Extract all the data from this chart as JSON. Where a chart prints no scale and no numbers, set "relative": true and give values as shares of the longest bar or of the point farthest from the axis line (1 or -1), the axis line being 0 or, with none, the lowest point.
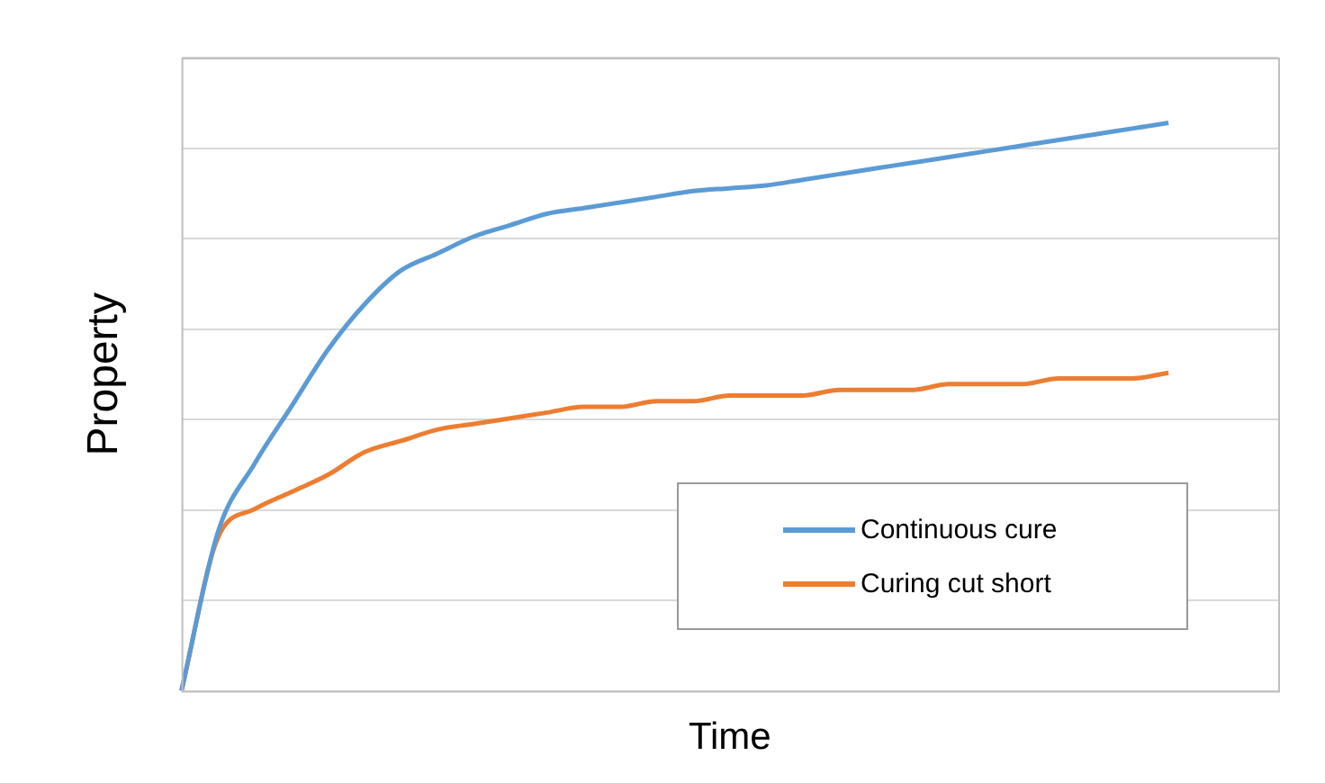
{
  "chart_data": {
    "type": "line",
    "xlabel": "Time",
    "ylabel": "Property",
    "relative": true,
    "grid": "y",
    "legend": "bottom right",
    "tick_labels": false,
    "marker": "none",
    "line_style": "solid",
    "categories": [
      null,
      null,
      null,
      null,
      null,
      null,
      null,
      null,
      null,
      null,
      null,
      null,
      null,
      null,
      null,
      null,
      null,
      null,
      null,
      null,
      null,
      null,
      null,
      null,
      null,
      null,
      null,
      null,
      null,
      null,
      null
    ],
    "series": [
      {
        "name": "Continuous cure",
        "color": "#5b9bd5",
        "values": [
          0,
          0.28,
          0.4,
          0.5,
          0.6,
          0.68,
          0.74,
          0.77,
          0.8,
          0.82,
          0.84,
          0.85,
          0.86,
          0.87,
          0.88,
          0.885,
          0.89,
          0.9,
          0.91,
          0.92,
          0.93,
          0.94,
          0.95,
          0.96,
          0.97,
          0.98,
          0.99,
          1,
          null,
          null,
          null
        ]
      },
      {
        "name": "Curing cut short",
        "color": "#ed7d31",
        "values": [
          0,
          0.27,
          0.32,
          0.35,
          0.38,
          0.42,
          0.44,
          0.46,
          0.47,
          0.48,
          0.49,
          0.5,
          0.5,
          0.51,
          0.51,
          0.52,
          0.52,
          0.52,
          0.53,
          0.53,
          0.53,
          0.54,
          0.54,
          0.54,
          0.55,
          0.55,
          0.55,
          0.56,
          null,
          null,
          null
        ]
      }
    ]
  }
}
